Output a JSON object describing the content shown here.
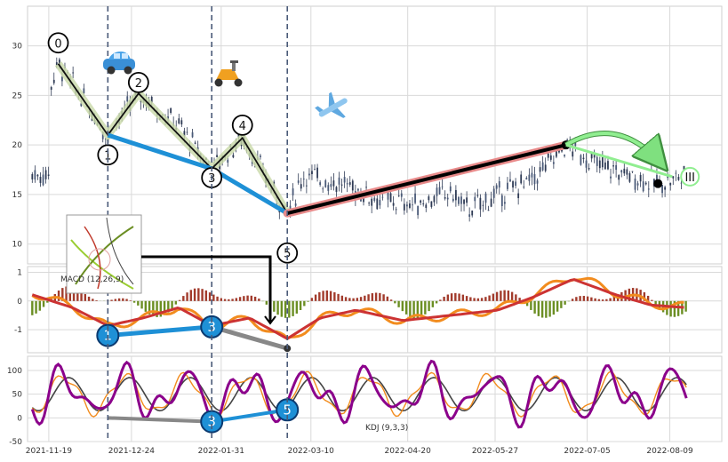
{
  "chart_data": {
    "type": "line",
    "x_dates": [
      "2021-11-19",
      "2021-12-24",
      "2022-01-31",
      "2022-03-10",
      "2022-04-20",
      "2022-05-27",
      "2022-07-05",
      "2022-08-09"
    ],
    "x_num_range": [
      -9,
      285
    ],
    "panels": [
      {
        "name": "price",
        "type": "candlestick",
        "ylim": [
          8,
          34
        ],
        "yticks": [
          10,
          15,
          20,
          25,
          30
        ],
        "annotation": "Harmonic / Elliott wave points 0-5 with extrapolated target III",
        "wave_points": [
          {
            "label": "0",
            "x": 4,
            "y": 28.2
          },
          {
            "label": "1",
            "x": 25,
            "y": 21.0
          },
          {
            "label": "2",
            "x": 38,
            "y": 25.2
          },
          {
            "label": "3",
            "x": 69,
            "y": 17.6
          },
          {
            "label": "4",
            "x": 82,
            "y": 20.7
          },
          {
            "label": "5",
            "x": 101,
            "y": 13.1
          }
        ],
        "wave_labels_y": [
          {
            "label": "0",
            "y": 30.3
          },
          {
            "label": "1",
            "y": 19.0
          },
          {
            "label": "2",
            "y": 26.3
          },
          {
            "label": "3",
            "y": 16.7
          },
          {
            "label": "4",
            "y": 22.0
          },
          {
            "label": "5",
            "y": 9.1
          }
        ],
        "trend_blue": [
          [
            25,
            21.0
          ],
          [
            69,
            17.6
          ],
          [
            101,
            13.1
          ]
        ],
        "trend_red": [
          [
            101,
            13.1
          ],
          [
            219,
            20.0
          ]
        ],
        "projection_green": {
          "from": [
            219,
            20.0
          ],
          "to": [
            264,
            16.8
          ],
          "label": "III"
        },
        "marker_black": {
          "x": 258,
          "y": 16.1
        },
        "vlines_x": [
          25,
          69,
          101
        ],
        "icons": [
          "car-icon",
          "scooter-icon",
          "airplane-icon"
        ]
      },
      {
        "name": "macd",
        "label": "MACD (12,26,9)",
        "ylim": [
          -1.8,
          1.2
        ],
        "yticks": [
          -1,
          0,
          1
        ],
        "points": [
          {
            "label": "1",
            "x": 25,
            "y": -1.2
          },
          {
            "label": "3",
            "x": 69,
            "y": -0.9
          },
          {
            "label": "",
            "x": 101,
            "y": -1.65
          }
        ]
      },
      {
        "name": "kdj",
        "label": "KDJ (9,3,3)",
        "ylim": [
          -50,
          130
        ],
        "yticks": [
          -50,
          0,
          50,
          100
        ],
        "points": [
          {
            "label": "",
            "x": 25,
            "y": 0
          },
          {
            "label": "3",
            "x": 69,
            "y": -8
          },
          {
            "label": "5",
            "x": 101,
            "y": 17
          }
        ]
      }
    ],
    "legend": "none",
    "grid": true
  }
}
